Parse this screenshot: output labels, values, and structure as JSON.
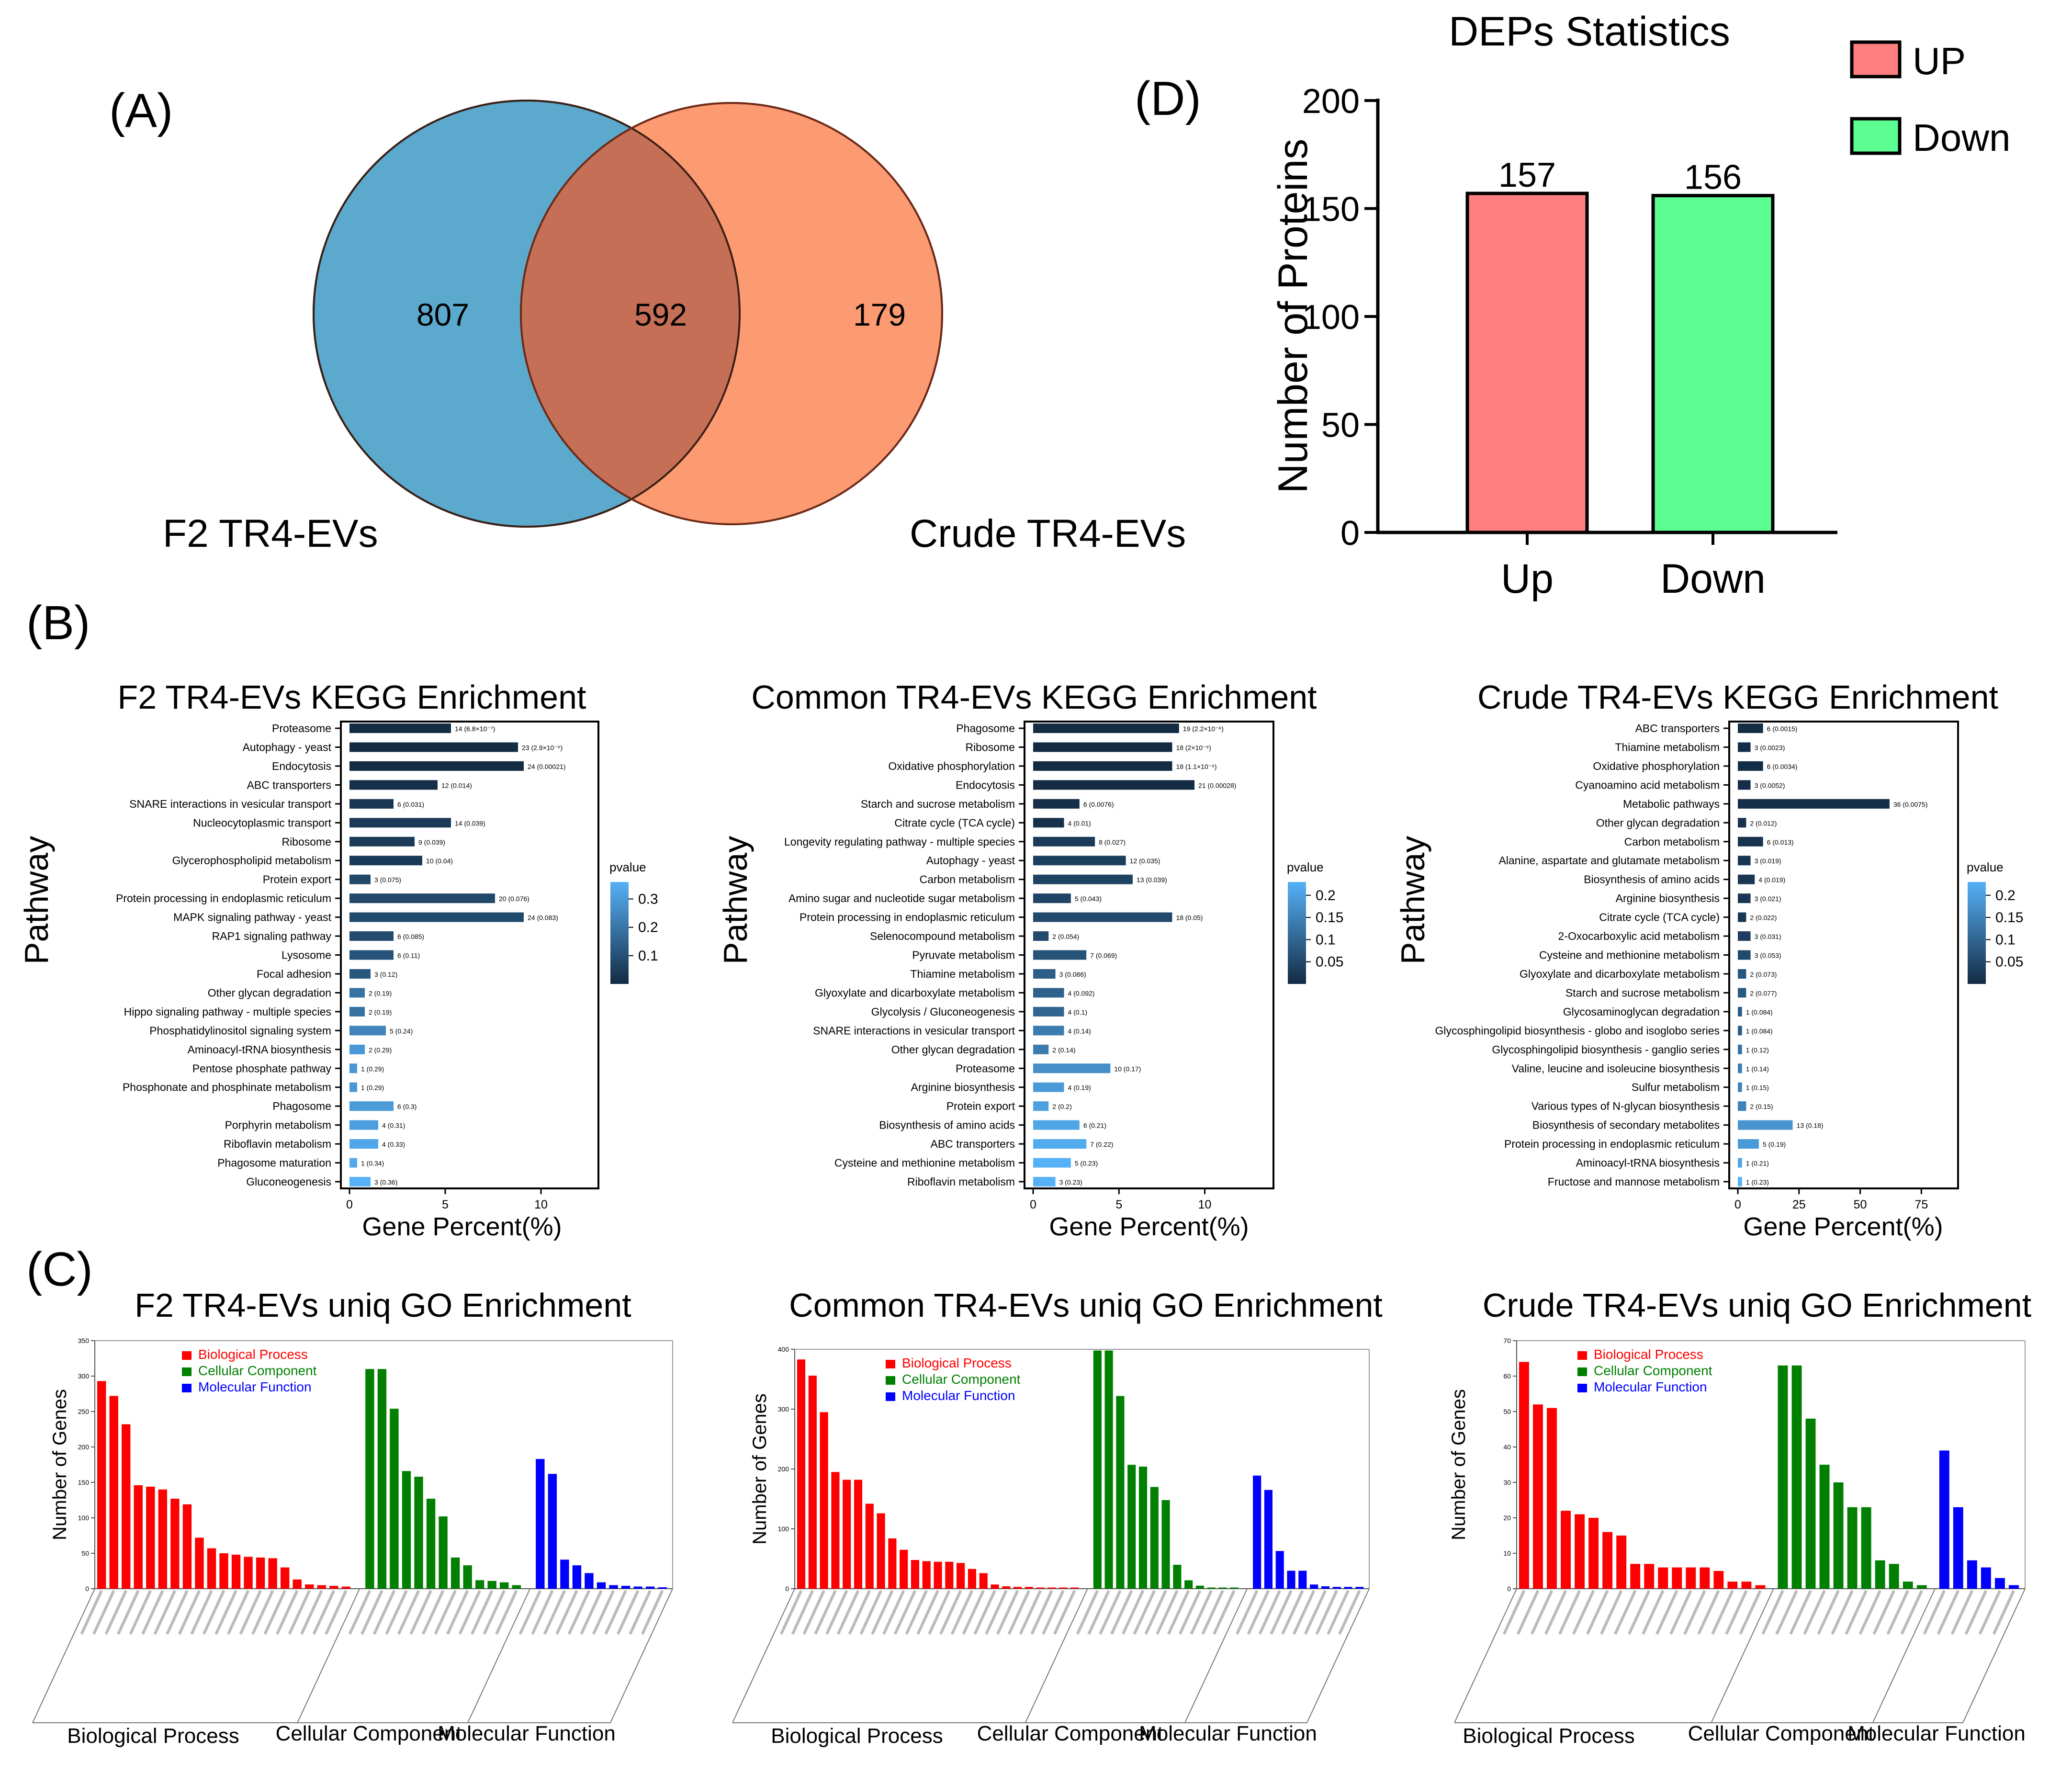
{
  "panels": {
    "A": "(A)",
    "B": "(B)",
    "C": "(C)",
    "D": "(D)"
  },
  "venn": {
    "left_label": "F2 TR4-EVs",
    "right_label": "Crude TR4-EVs",
    "left_only": "807",
    "overlap": "592",
    "right_only": "179",
    "colors": {
      "left": "#5ba9cc",
      "right": "#fc9a72",
      "overlap": "#c66f57"
    }
  },
  "chart_data": [
    {
      "id": "deps",
      "type": "bar",
      "title": "DEPs Statistics",
      "ylabel": "Number of Proteins",
      "xlabel": "",
      "categories": [
        "Up",
        "Down"
      ],
      "values": [
        157,
        156
      ],
      "data_labels": [
        "157",
        "156"
      ],
      "ylim": [
        0,
        200
      ],
      "yticks": [
        0,
        50,
        100,
        150,
        200
      ],
      "colors": [
        "#fd7f7f",
        "#5cfd91"
      ],
      "legend": {
        "position": "top-right",
        "items": [
          {
            "label": "UP",
            "color": "#fd7f7f"
          },
          {
            "label": "Down",
            "color": "#5cfd91"
          }
        ]
      }
    },
    {
      "id": "kegg_f2",
      "type": "bar",
      "orientation": "horizontal",
      "title": "F2 TR4-EVs KEGG Enrichment",
      "ylabel": "Pathway",
      "xlabel": "Gene Percent(%)",
      "xlim": [
        0,
        13
      ],
      "xticks": [
        0,
        5,
        10
      ],
      "colorbar": {
        "title": "pvalue",
        "ticks": [
          0.1,
          0.2,
          0.3
        ],
        "min": 0.0,
        "max": 0.36
      },
      "pathways": [
        "Proteasome",
        "Autophagy - yeast",
        "Endocytosis",
        "ABC transporters",
        "SNARE interactions in vesicular transport",
        "Nucleocytoplasmic transport",
        "Ribosome",
        "Glycerophospholipid metabolism",
        "Protein export",
        "Protein processing in endoplasmic reticulum",
        "MAPK signaling pathway - yeast",
        "RAP1 signaling pathway",
        "Lysosome",
        "Focal adhesion",
        "Other glycan degradation",
        "Hippo signaling pathway - multiple species",
        "Phosphatidylinositol signaling system",
        "Aminoacyl-tRNA biosynthesis",
        "Pentose phosphate pathway",
        "Phosphonate and phosphinate metabolism",
        "Phagosome",
        "Porphyrin metabolism",
        "Riboflavin metabolism",
        "Phagosome maturation",
        "Gluconeogenesis"
      ],
      "values": [
        5.3,
        8.8,
        9.1,
        4.6,
        2.3,
        5.3,
        3.4,
        3.8,
        1.1,
        7.6,
        9.1,
        2.3,
        2.3,
        1.1,
        0.8,
        0.8,
        1.9,
        0.8,
        0.4,
        0.4,
        2.3,
        1.5,
        1.5,
        0.4,
        1.1
      ],
      "pvalues": [
        6.8e-07,
        2.9e-06,
        0.00021,
        0.014,
        0.031,
        0.039,
        0.039,
        0.04,
        0.075,
        0.076,
        0.083,
        0.085,
        0.11,
        0.12,
        0.19,
        0.19,
        0.24,
        0.29,
        0.29,
        0.29,
        0.3,
        0.31,
        0.33,
        0.34,
        0.36
      ],
      "labels": [
        "14 (6.8×10⁻⁷)",
        "23 (2.9×10⁻⁶)",
        "24 (0.00021)",
        "12 (0.014)",
        "6 (0.031)",
        "14 (0.039)",
        "9 (0.039)",
        "10 (0.04)",
        "3 (0.075)",
        "20 (0.076)",
        "24 (0.083)",
        "6 (0.085)",
        "6 (0.11)",
        "3 (0.12)",
        "2 (0.19)",
        "2 (0.19)",
        "5 (0.24)",
        "2 (0.29)",
        "1 (0.29)",
        "1 (0.29)",
        "6 (0.3)",
        "4 (0.31)",
        "4 (0.33)",
        "1 (0.34)",
        "3 (0.36)"
      ]
    },
    {
      "id": "kegg_common",
      "type": "bar",
      "orientation": "horizontal",
      "title": "Common TR4-EVs KEGG Enrichment",
      "ylabel": "Pathway",
      "xlabel": "Gene Percent(%)",
      "xlim": [
        0,
        14
      ],
      "xticks": [
        0,
        5,
        10
      ],
      "colorbar": {
        "title": "pvalue",
        "ticks": [
          0.05,
          0.1,
          0.15,
          0.2
        ],
        "min": 0.0,
        "max": 0.23
      },
      "pathways": [
        "Phagosome",
        "Ribosome",
        "Oxidative phosphorylation",
        "Endocytosis",
        "Starch and sucrose metabolism",
        "Citrate cycle (TCA cycle)",
        "Longevity regulating pathway - multiple species",
        "Autophagy - yeast",
        "Carbon metabolism",
        "Amino sugar and nucleotide sugar metabolism",
        "Protein processing in endoplasmic reticulum",
        "Selenocompound metabolism",
        "Pyruvate metabolism",
        "Thiamine metabolism",
        "Glyoxylate and dicarboxylate metabolism",
        "Glycolysis / Gluconeogenesis",
        "SNARE interactions in vesicular transport",
        "Other glycan degradation",
        "Proteasome",
        "Arginine biosynthesis",
        "Protein export",
        "Biosynthesis of amino acids",
        "ABC transporters",
        "Cysteine and methionine metabolism",
        "Riboflavin metabolism"
      ],
      "values": [
        8.5,
        8.1,
        8.1,
        9.4,
        2.7,
        1.8,
        3.6,
        5.4,
        5.8,
        2.2,
        8.1,
        0.9,
        3.1,
        1.3,
        1.8,
        1.8,
        1.8,
        0.9,
        4.5,
        1.8,
        0.9,
        2.7,
        3.1,
        2.2,
        1.3
      ],
      "pvalues": [
        2.2e-06,
        2e-06,
        1.1e-06,
        0.00028,
        0.0076,
        0.01,
        0.027,
        0.035,
        0.039,
        0.043,
        0.05,
        0.054,
        0.069,
        0.086,
        0.092,
        0.1,
        0.14,
        0.14,
        0.17,
        0.19,
        0.2,
        0.21,
        0.22,
        0.23,
        0.23
      ],
      "labels": [
        "19 (2.2×10⁻⁶)",
        "18 (2×10⁻⁶)",
        "18 (1.1×10⁻⁶)",
        "21 (0.00028)",
        "6 (0.0076)",
        "4 (0.01)",
        "8 (0.027)",
        "12 (0.035)",
        "13 (0.039)",
        "5 (0.043)",
        "18 (0.05)",
        "2 (0.054)",
        "7 (0.069)",
        "3 (0.086)",
        "4 (0.092)",
        "4 (0.1)",
        "4 (0.14)",
        "2 (0.14)",
        "10 (0.17)",
        "4 (0.19)",
        "2 (0.2)",
        "6 (0.21)",
        "7 (0.22)",
        "5 (0.23)",
        "3 (0.23)"
      ]
    },
    {
      "id": "kegg_crude",
      "type": "bar",
      "orientation": "horizontal",
      "title": "Crude TR4-EVs KEGG Enrichment",
      "ylabel": "Pathway",
      "xlabel": "Gene Percent(%)",
      "xlim": [
        0,
        90
      ],
      "xticks": [
        0,
        25,
        50,
        75
      ],
      "colorbar": {
        "title": "pvalue",
        "ticks": [
          0.05,
          0.1,
          0.15,
          0.2
        ],
        "min": 0.0,
        "max": 0.23
      },
      "pathways": [
        "ABC transporters",
        "Thiamine metabolism",
        "Oxidative phosphorylation",
        "Cyanoamino acid metabolism",
        "Metabolic pathways",
        "Other glycan degradation",
        "Carbon metabolism",
        "Alanine, aspartate and glutamate metabolism",
        "Biosynthesis of amino acids",
        "Arginine biosynthesis",
        "Citrate cycle (TCA cycle)",
        "2-Oxocarboxylic acid metabolism",
        "Cysteine and methionine metabolism",
        "Glyoxylate and dicarboxylate metabolism",
        "Starch and sucrose metabolism",
        "Glycosaminoglycan degradation",
        "Glycosphingolipid biosynthesis - globo and isoglobo series",
        "Glycosphingolipid biosynthesis - ganglio series",
        "Valine, leucine and isoleucine biosynthesis",
        "Sulfur metabolism",
        "Various types of N-glycan biosynthesis",
        "Biosynthesis of secondary metabolites",
        "Protein processing in endoplasmic reticulum",
        "Aminoacyl-tRNA biosynthesis",
        "Fructose and mannose metabolism"
      ],
      "values": [
        10.3,
        5.2,
        10.3,
        5.2,
        62,
        3.4,
        10.3,
        5.2,
        6.9,
        5.2,
        3.4,
        5.2,
        5.2,
        3.4,
        3.4,
        1.7,
        1.7,
        1.7,
        1.7,
        1.7,
        3.4,
        22.4,
        8.6,
        1.7,
        1.7
      ],
      "pvalues": [
        0.0015,
        0.0023,
        0.0034,
        0.0052,
        0.0075,
        0.012,
        0.013,
        0.019,
        0.019,
        0.021,
        0.022,
        0.031,
        0.053,
        0.073,
        0.077,
        0.084,
        0.084,
        0.12,
        0.14,
        0.15,
        0.15,
        0.18,
        0.19,
        0.21,
        0.23
      ],
      "labels": [
        "6 (0.0015)",
        "3 (0.0023)",
        "6 (0.0034)",
        "3 (0.0052)",
        "36 (0.0075)",
        "2 (0.012)",
        "6 (0.013)",
        "3 (0.019)",
        "4 (0.019)",
        "3 (0.021)",
        "2 (0.022)",
        "3 (0.031)",
        "3 (0.053)",
        "2 (0.073)",
        "2 (0.077)",
        "1 (0.084)",
        "1 (0.084)",
        "1 (0.12)",
        "1 (0.14)",
        "1 (0.15)",
        "2 (0.15)",
        "13 (0.18)",
        "5 (0.19)",
        "1 (0.21)",
        "1 (0.23)"
      ]
    },
    {
      "id": "go_f2",
      "type": "bar",
      "title": "F2 TR4-EVs uniq GO Enrichment",
      "ylabel": "Number of Genes",
      "ymax": 350,
      "yticks": [
        0,
        50,
        100,
        150,
        200,
        250,
        300,
        350
      ],
      "legend": [
        "Biological Process",
        "Cellular Component",
        "Molecular Function"
      ],
      "group_labels": [
        "Biological Process",
        "Cellular Component",
        "Molecular Function"
      ],
      "series": [
        {
          "name": "Biological Process",
          "color": "#fe0000",
          "values": [
            293,
            272,
            232,
            146,
            144,
            140,
            127,
            119,
            72,
            57,
            50,
            48,
            45,
            44,
            43,
            30,
            13,
            6,
            5,
            4,
            3
          ]
        },
        {
          "name": "Cellular Component",
          "color": "#007f00",
          "values": [
            310,
            310,
            254,
            166,
            158,
            127,
            102,
            44,
            33,
            12,
            11,
            9,
            5
          ]
        },
        {
          "name": "Molecular Function",
          "color": "#0000fe",
          "values": [
            183,
            162,
            41,
            33,
            22,
            9,
            5,
            4,
            3,
            3,
            2
          ]
        }
      ]
    },
    {
      "id": "go_common",
      "type": "bar",
      "title": "Common TR4-EVs uniq GO Enrichment",
      "ylabel": "Number of Genes",
      "ymax": 400,
      "yticks": [
        0,
        100,
        200,
        300,
        400
      ],
      "legend": [
        "Biological Process",
        "Cellular Component",
        "Molecular Function"
      ],
      "group_labels": [
        "Biological Process",
        "Cellular Component",
        "Molecular Function"
      ],
      "series": [
        {
          "name": "Biological Process",
          "color": "#fe0000",
          "values": [
            383,
            356,
            295,
            195,
            182,
            182,
            142,
            126,
            84,
            65,
            48,
            46,
            45,
            45,
            43,
            33,
            26,
            7,
            4,
            3,
            3,
            2,
            2,
            2,
            2
          ]
        },
        {
          "name": "Cellular Component",
          "color": "#007f00",
          "values": [
            398,
            398,
            322,
            207,
            204,
            170,
            148,
            40,
            14,
            5,
            2,
            2,
            2
          ]
        },
        {
          "name": "Molecular Function",
          "color": "#0000fe",
          "values": [
            189,
            165,
            63,
            30,
            30,
            7,
            4,
            3,
            3,
            3
          ]
        }
      ]
    },
    {
      "id": "go_crude",
      "type": "bar",
      "title": "Crude TR4-EVs uniq GO Enrichment",
      "ylabel": "Number of Genes",
      "ymax": 70,
      "yticks": [
        0,
        10,
        20,
        30,
        40,
        50,
        60,
        70
      ],
      "legend": [
        "Biological Process",
        "Cellular Component",
        "Molecular Function"
      ],
      "group_labels": [
        "Biological Process",
        "Cellular Component",
        "Molecular Function"
      ],
      "series": [
        {
          "name": "Biological Process",
          "color": "#fe0000",
          "values": [
            64,
            52,
            51,
            22,
            21,
            20,
            16,
            15,
            7,
            7,
            6,
            6,
            6,
            6,
            5,
            2,
            2,
            1
          ]
        },
        {
          "name": "Cellular Component",
          "color": "#007f00",
          "values": [
            63,
            63,
            48,
            35,
            30,
            23,
            23,
            8,
            7,
            2,
            1
          ]
        },
        {
          "name": "Molecular Function",
          "color": "#0000fe",
          "values": [
            39,
            23,
            8,
            6,
            3,
            1
          ]
        }
      ]
    }
  ]
}
